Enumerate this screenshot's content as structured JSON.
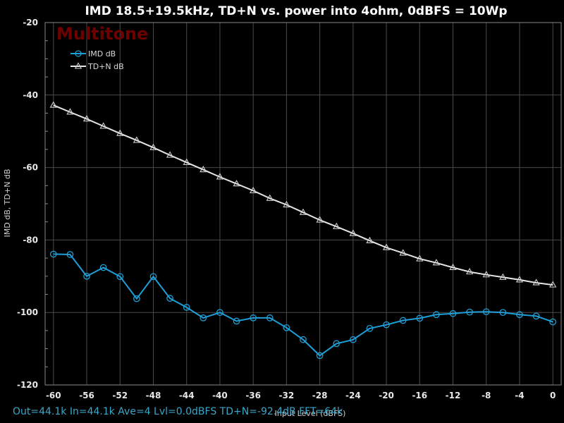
{
  "brand": "Multitone",
  "status_text": "Out=44.1k  In=44.1k  Ave=4  Lvl=0.0dBFS  TD+N=-92.4dB  FFT=64k",
  "colors": {
    "background": "#000000",
    "grid": "#4a4a4a",
    "imd": "#1e9fd8",
    "tdn": "#e6e6e6",
    "brand": "#6e0000",
    "status": "#3aa6c8"
  },
  "chart_data": {
    "type": "line",
    "title": "IMD 18.5+19.5kHz, TD+N vs. power into 4ohm, 0dBFS = 10Wp",
    "xlabel": "Input Level (dBFS)",
    "ylabel": "IMD dB, TD+N dB",
    "xlim": [
      -61,
      1
    ],
    "ylim": [
      -120,
      -20
    ],
    "xticks": [
      -60,
      -56,
      -52,
      -48,
      -44,
      -40,
      -36,
      -32,
      -28,
      -24,
      -20,
      -16,
      -12,
      -8,
      -4,
      0
    ],
    "yticks": [
      -20,
      -40,
      -60,
      -80,
      -100,
      -120
    ],
    "grid": true,
    "legend_position": "top-left",
    "x": [
      -60,
      -58,
      -56,
      -54,
      -52,
      -50,
      -48,
      -46,
      -44,
      -42,
      -40,
      -38,
      -36,
      -34,
      -32,
      -30,
      -28,
      -26,
      -24,
      -22,
      -20,
      -18,
      -16,
      -14,
      -12,
      -10,
      -8,
      -6,
      -4,
      -2,
      0
    ],
    "series": [
      {
        "name": "IMD dB",
        "marker": "circle",
        "color": "#1e9fd8",
        "values": [
          -83.9,
          -84.0,
          -90.0,
          -87.6,
          -90.1,
          -96.2,
          -90.1,
          -96.1,
          -98.6,
          -101.5,
          -100.0,
          -102.4,
          -101.5,
          -101.5,
          -104.2,
          -107.5,
          -111.9,
          -108.6,
          -107.5,
          -104.4,
          -103.4,
          -102.2,
          -101.6,
          -100.6,
          -100.3,
          -99.9,
          -99.8,
          -100.0,
          -100.6,
          -101.0,
          -102.6
        ]
      },
      {
        "name": "TD+N dB",
        "marker": "triangle",
        "color": "#e6e6e6",
        "values": [
          -42.8,
          -44.7,
          -46.6,
          -48.6,
          -50.6,
          -52.5,
          -54.5,
          -56.6,
          -58.6,
          -60.6,
          -62.6,
          -64.5,
          -66.4,
          -68.5,
          -70.3,
          -72.4,
          -74.5,
          -76.3,
          -78.2,
          -80.2,
          -82.1,
          -83.6,
          -85.2,
          -86.3,
          -87.6,
          -88.8,
          -89.6,
          -90.3,
          -91.0,
          -91.8,
          -92.4
        ]
      }
    ]
  }
}
